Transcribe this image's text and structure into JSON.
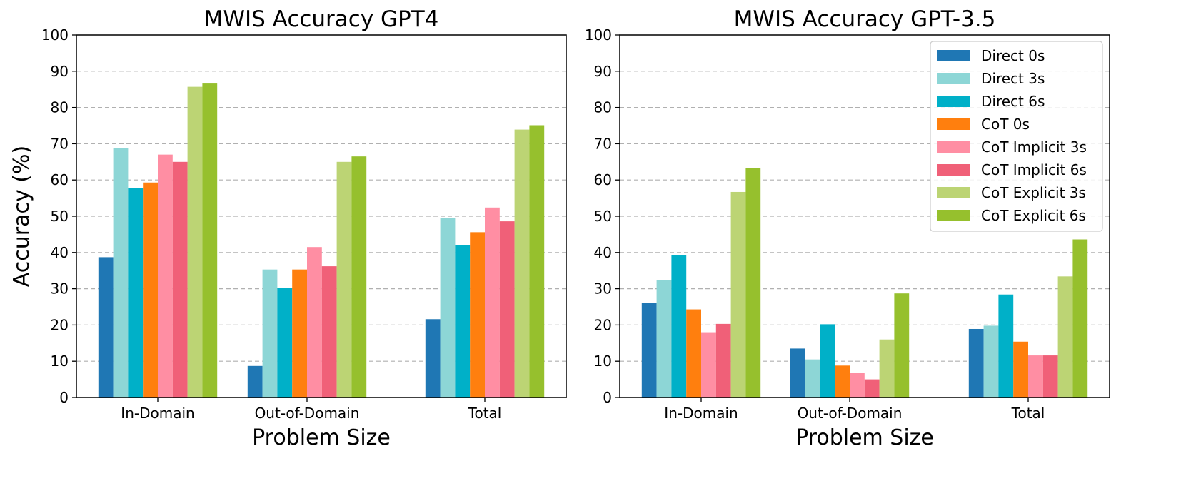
{
  "chart_data": [
    {
      "type": "bar",
      "title": "MWIS Accuracy GPT4",
      "xlabel": "Problem Size",
      "ylabel": "Accuracy (%)",
      "categories": [
        "In-Domain",
        "Out-of-Domain",
        "Total"
      ],
      "ylim": [
        0,
        100
      ],
      "yticks": [
        "0",
        "10",
        "20",
        "30",
        "40",
        "50",
        "60",
        "70",
        "80",
        "90",
        "100"
      ],
      "grid": "y-dashed",
      "legend": null,
      "series": [
        {
          "name": "Direct 0s",
          "color": "#1f77b4",
          "values": [
            38.7,
            8.7,
            21.6
          ]
        },
        {
          "name": "Direct 3s",
          "color": "#8dd6d6",
          "values": [
            68.7,
            35.3,
            49.6
          ]
        },
        {
          "name": "Direct 6s",
          "color": "#00b0c8",
          "values": [
            57.7,
            30.2,
            42.0
          ]
        },
        {
          "name": "CoT 0s",
          "color": "#ff7f0e",
          "values": [
            59.3,
            35.3,
            45.6
          ]
        },
        {
          "name": "CoT Implicit 3s",
          "color": "#ff8ea3",
          "values": [
            67.0,
            41.5,
            52.4
          ]
        },
        {
          "name": "CoT Implicit 6s",
          "color": "#f06078",
          "values": [
            65.0,
            36.2,
            48.6
          ]
        },
        {
          "name": "CoT Explicit 3s",
          "color": "#bcd474",
          "values": [
            85.7,
            65.0,
            73.9
          ]
        },
        {
          "name": "CoT Explicit 6s",
          "color": "#96c02d",
          "values": [
            86.6,
            66.5,
            75.1
          ]
        }
      ]
    },
    {
      "type": "bar",
      "title": "MWIS Accuracy GPT-3.5",
      "xlabel": "Problem Size",
      "ylabel": "",
      "categories": [
        "In-Domain",
        "Out-of-Domain",
        "Total"
      ],
      "ylim": [
        0,
        100
      ],
      "yticks": [
        "0",
        "10",
        "20",
        "30",
        "40",
        "50",
        "60",
        "70",
        "80",
        "90",
        "100"
      ],
      "grid": "y-dashed",
      "legend": "top-right",
      "series": [
        {
          "name": "Direct 0s",
          "color": "#1f77b4",
          "values": [
            26.0,
            13.5,
            18.9
          ]
        },
        {
          "name": "Direct 3s",
          "color": "#8dd6d6",
          "values": [
            32.3,
            10.5,
            19.8
          ]
        },
        {
          "name": "Direct 6s",
          "color": "#00b0c8",
          "values": [
            39.3,
            20.2,
            28.4
          ]
        },
        {
          "name": "CoT 0s",
          "color": "#ff7f0e",
          "values": [
            24.3,
            8.8,
            15.4
          ]
        },
        {
          "name": "CoT Implicit 3s",
          "color": "#ff8ea3",
          "values": [
            18.0,
            6.8,
            11.6
          ]
        },
        {
          "name": "CoT Implicit 6s",
          "color": "#f06078",
          "values": [
            20.3,
            5.0,
            11.6
          ]
        },
        {
          "name": "CoT Explicit 3s",
          "color": "#bcd474",
          "values": [
            56.7,
            16.0,
            33.4
          ]
        },
        {
          "name": "CoT Explicit 6s",
          "color": "#96c02d",
          "values": [
            63.3,
            28.7,
            43.6
          ]
        }
      ]
    }
  ]
}
